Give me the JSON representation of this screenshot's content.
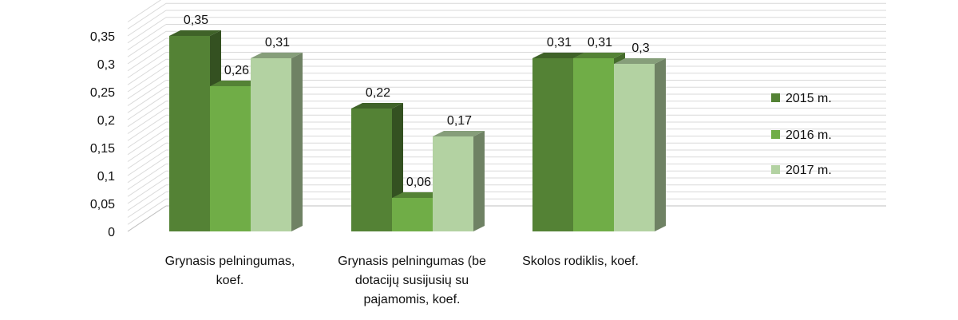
{
  "chart_data": {
    "type": "bar",
    "categories": [
      [
        "Grynasis pelningumas,",
        "koef."
      ],
      [
        "Grynasis pelningumas (be",
        "dotacijų susijusių su",
        "pajamomis, koef."
      ],
      [
        "Skolos rodiklis, koef."
      ]
    ],
    "series": [
      {
        "name": "2015 m.",
        "values": [
          0.35,
          0.22,
          0.31
        ],
        "labels": [
          "0,35",
          "0,22",
          "0,31"
        ]
      },
      {
        "name": "2016 m.",
        "values": [
          0.26,
          0.06,
          0.31
        ],
        "labels": [
          "0,26",
          "0,06",
          "0,31"
        ]
      },
      {
        "name": "2017 m.",
        "values": [
          0.31,
          0.17,
          0.3
        ],
        "labels": [
          "0,31",
          "0,17",
          "0,3"
        ]
      }
    ],
    "y_ticks": [
      {
        "value": 0,
        "label": "0"
      },
      {
        "value": 0.05,
        "label": "0,05"
      },
      {
        "value": 0.1,
        "label": "0,1"
      },
      {
        "value": 0.15,
        "label": "0,15"
      },
      {
        "value": 0.2,
        "label": "0,2"
      },
      {
        "value": 0.25,
        "label": "0,25"
      },
      {
        "value": 0.3,
        "label": "0,3"
      },
      {
        "value": 0.35,
        "label": "0,35"
      }
    ],
    "ylim": [
      0,
      0.35
    ],
    "grid": true,
    "legend_position": "right",
    "colors": {
      "2015 m.": "#548235",
      "2016 m.": "#70ad47",
      "2017 m.": "#b3d2a2"
    }
  }
}
